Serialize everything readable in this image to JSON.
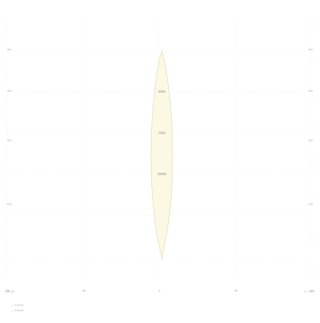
{
  "chart_data": {
    "type": "area",
    "title": "",
    "xlabel": "",
    "ylabel": "",
    "x_ticks": [
      "-30",
      "-15",
      "0",
      "15",
      "30"
    ],
    "y_ticks": [
      "1m",
      "2m",
      "3m",
      "4m",
      "5m"
    ],
    "y_ticks_right": [
      "1m",
      "2m",
      "3m",
      "4m",
      "5m"
    ],
    "xlim": [
      -30,
      30
    ],
    "ylim": [
      0,
      5
    ],
    "grid": true,
    "cone": {
      "half_angle_deg": 1.6,
      "length_m": 5,
      "fill": "#fbf8e4",
      "stroke": "#e2dcba"
    },
    "annotations": [
      {
        "text": "5000",
        "distance_m": 3.0
      },
      {
        "text": "7500",
        "distance_m": 2.0
      },
      {
        "text": "20000",
        "distance_m": 1.0
      }
    ],
    "footer": {
      "left": "0.5 lux",
      "right": "1 / 30%",
      "legend": [
        "— 1.0 lux",
        "— 0.5 lux"
      ]
    }
  }
}
